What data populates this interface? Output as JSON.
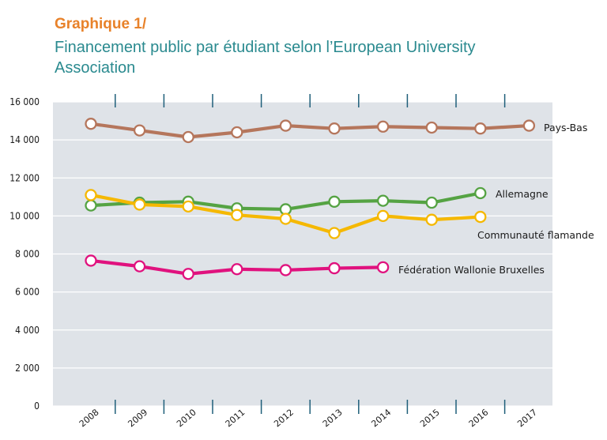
{
  "header": {
    "kicker": "Graphique 1/",
    "title": "Financement public par étudiant selon l’European University Association"
  },
  "chart_data": {
    "type": "line",
    "title": "Financement public par étudiant selon l’European University Association",
    "xlabel": "",
    "ylabel": "",
    "x": [
      "2008",
      "2009",
      "2010",
      "2011",
      "2012",
      "2013",
      "2014",
      "2015",
      "2016",
      "2017"
    ],
    "ylim": [
      0,
      16000
    ],
    "y_ticks": [
      "0",
      "2 000",
      "4 000",
      "6 000",
      "8 000",
      "10 000",
      "12 000",
      "14 000",
      "16 000"
    ],
    "y_tick_values": [
      0,
      2000,
      4000,
      6000,
      8000,
      10000,
      12000,
      14000,
      16000
    ],
    "grid": "horizontal",
    "legend": "inline labels",
    "series": [
      {
        "name": "Pays-Bas",
        "color": "#b5765c",
        "values": [
          14850,
          14500,
          14150,
          14400,
          14750,
          14600,
          14700,
          14650,
          14600,
          14750
        ]
      },
      {
        "name": "Allemagne",
        "color": "#55a343",
        "values": [
          10550,
          10700,
          10750,
          10400,
          10350,
          10750,
          10800,
          10700,
          11200,
          null
        ]
      },
      {
        "name": "Communauté flamande",
        "color": "#f5b800",
        "values": [
          11100,
          10600,
          10500,
          10050,
          9850,
          9100,
          10000,
          9800,
          9950,
          null
        ]
      },
      {
        "name": "Fédération Wallonie Bruxelles",
        "color": "#e0127e",
        "values": [
          7650,
          7350,
          6950,
          7200,
          7150,
          7250,
          7300,
          null,
          null,
          null
        ]
      }
    ]
  }
}
